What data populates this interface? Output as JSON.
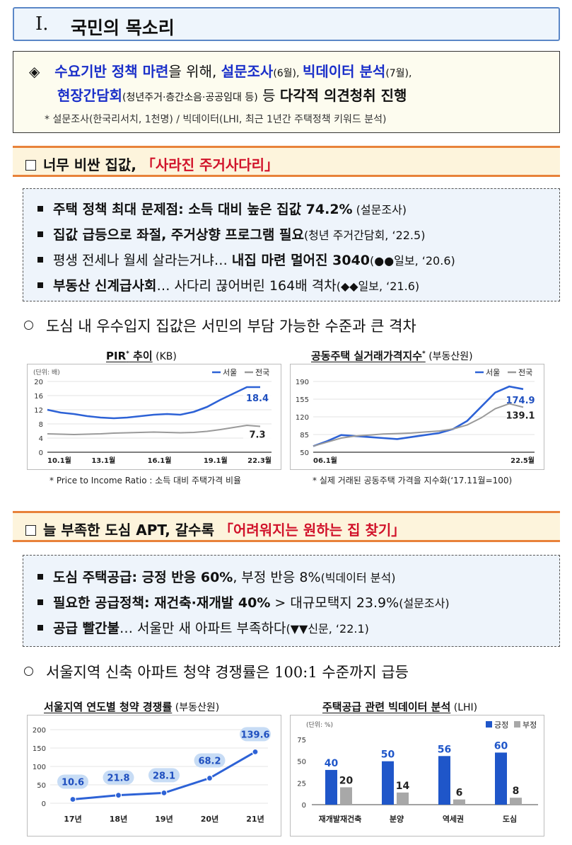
{
  "title": {
    "numeral": "Ⅰ.",
    "text": "국민의 목소리"
  },
  "summary": {
    "diamond": "◈",
    "l1_a": "수요기반 정책 마련",
    "l1_b": "을 위해, ",
    "l1_c": "설문조사",
    "l1_d": "(6월), ",
    "l1_e": "빅데이터 분석",
    "l1_f": "(7월),",
    "l2_a": "현장간담회",
    "l2_b": "(청년주거·층간소음·공공임대 등)",
    "l2_c": " 등 ",
    "l2_d": "다각적 의견청취 진행",
    "note": "* 설문조사(한국리서치, 1천명) / 빅데이터(LHI, 최근 1년간 주택정책 키워드 분석)"
  },
  "section1": {
    "a": "너무 비싼 집값, ",
    "b": "「사라진 주거사다리」",
    "bullets": [
      {
        "bold": "주택 정책 최대 문제점: 소득 대비 높은 집값 74.2%",
        "rest": " (설문조사)"
      },
      {
        "bold": "집값 급등으로 좌절, 주거상향 프로그램 필요",
        "rest": "(청년 주거간담회, ‘22.5)"
      },
      {
        "pre": "평생 전세나 월세 살라는거냐… ",
        "bold": "내집 마련 멀어진 3040",
        "rest": "(●●일보, ‘20.6)"
      },
      {
        "bold": "부동산 신계급사회",
        "pre2": "… 사다리 끊어버린 164배 격차",
        "rest": "(◆◆일보, ‘21.6)"
      }
    ],
    "circle": "도심 내 우수입지 집값은 서민의 부담 가능한 수준과 큰 격차"
  },
  "pir_chart": {
    "title": "PIR",
    "sup": "*",
    "title2": " 추이",
    "source": " (KB)",
    "footnote": "* Price to Income Ratio : 소득 대비 주택가격 비율",
    "chart_data": {
      "type": "line",
      "unit": "(단위: 배)",
      "x_ticks": [
        "10.1월",
        "13.1월",
        "16.1월",
        "19.1월",
        "22.3월"
      ],
      "ylim": [
        0,
        20
      ],
      "y_ticks": [
        0,
        4,
        8,
        12,
        16,
        20
      ],
      "series": [
        {
          "name": "서울",
          "color": "#2d62d6",
          "values": [
            12,
            11.2,
            10.8,
            10.2,
            9.8,
            9.6,
            9.8,
            10.2,
            10.6,
            10.8,
            10.6,
            11.4,
            12.8,
            14.8,
            16.6,
            18.4,
            18.4
          ],
          "end_label": "18.4"
        },
        {
          "name": "전국",
          "color": "#9a9a9a",
          "values": [
            5.2,
            5.1,
            5.0,
            5.1,
            5.2,
            5.4,
            5.5,
            5.6,
            5.7,
            5.6,
            5.5,
            5.6,
            5.9,
            6.4,
            7.0,
            7.6,
            7.3
          ],
          "end_label": "7.3"
        }
      ]
    }
  },
  "apt_chart": {
    "title": "공동주택 실거래가격지수",
    "sup": "*",
    "source": " (부동산원)",
    "footnote": "* 실제 거래된 공동주택 가격을 지수화(‘17.11월=100)",
    "chart_data": {
      "type": "line",
      "x_ticks": [
        "06.1월",
        "22.5월"
      ],
      "ylim": [
        50,
        190
      ],
      "y_ticks": [
        50,
        85,
        120,
        155,
        190
      ],
      "series": [
        {
          "name": "서울",
          "color": "#2d62d6",
          "values": [
            62,
            72,
            84,
            82,
            80,
            78,
            76,
            80,
            84,
            88,
            96,
            112,
            140,
            168,
            180,
            174.9
          ],
          "end_label": "174.9"
        },
        {
          "name": "전국",
          "color": "#9a9a9a",
          "values": [
            62,
            70,
            78,
            82,
            84,
            86,
            87,
            88,
            90,
            92,
            96,
            104,
            118,
            136,
            146,
            139.1
          ],
          "end_label": "139.1"
        }
      ]
    }
  },
  "section2": {
    "a": "늘 부족한 도심 APT, 갈수록 ",
    "b": "「어려워지는 원하는 집 찾기」",
    "bullets": [
      {
        "bold": "도심 주택공급: 긍정 반응 60%",
        "pre2": ", 부정 반응 8%",
        "rest": "(빅데이터 분석)"
      },
      {
        "bold": "필요한 공급정책: 재건축·재개발 40%",
        "pre2": " > 대규모택지 23.9%",
        "rest": "(설문조사)"
      },
      {
        "bold": "공급 빨간불",
        "pre2": "… 서울만 새 아파트 부족하다",
        "rest": "(▼▼신문, ‘22.1)"
      }
    ],
    "circle": "서울지역 신축 아파트 청약 경쟁률은 100:1 수준까지 급등"
  },
  "comp_chart": {
    "title": "서울지역 연도별 청약 경쟁률",
    "source": " (부동산원)",
    "chart_data": {
      "type": "line",
      "categories": [
        "17년",
        "18년",
        "19년",
        "20년",
        "21년"
      ],
      "values": [
        10.6,
        21.8,
        28.1,
        68.2,
        139.6
      ],
      "labels": [
        "10.6",
        "21.8",
        "28.1",
        "68.2",
        "139.6"
      ],
      "ylim": [
        0,
        200
      ],
      "y_ticks": [
        0,
        50,
        100,
        150,
        200
      ],
      "color": "#2d62d6"
    }
  },
  "bigdata_chart": {
    "title": "주택공급 관련 빅데이터 분석",
    "source": " (LHI)",
    "chart_data": {
      "type": "bar",
      "unit": "(단위: %)",
      "categories": [
        "재개발재건축",
        "분양",
        "역세권",
        "도심"
      ],
      "series": [
        {
          "name": "긍정",
          "color": "#1f56c9",
          "values": [
            40,
            50,
            56,
            60
          ]
        },
        {
          "name": "부정",
          "color": "#a8a8a8",
          "values": [
            20,
            14,
            6,
            8
          ]
        }
      ],
      "ylim": [
        0,
        75
      ],
      "y_ticks": [
        0,
        25,
        50,
        75
      ]
    }
  }
}
